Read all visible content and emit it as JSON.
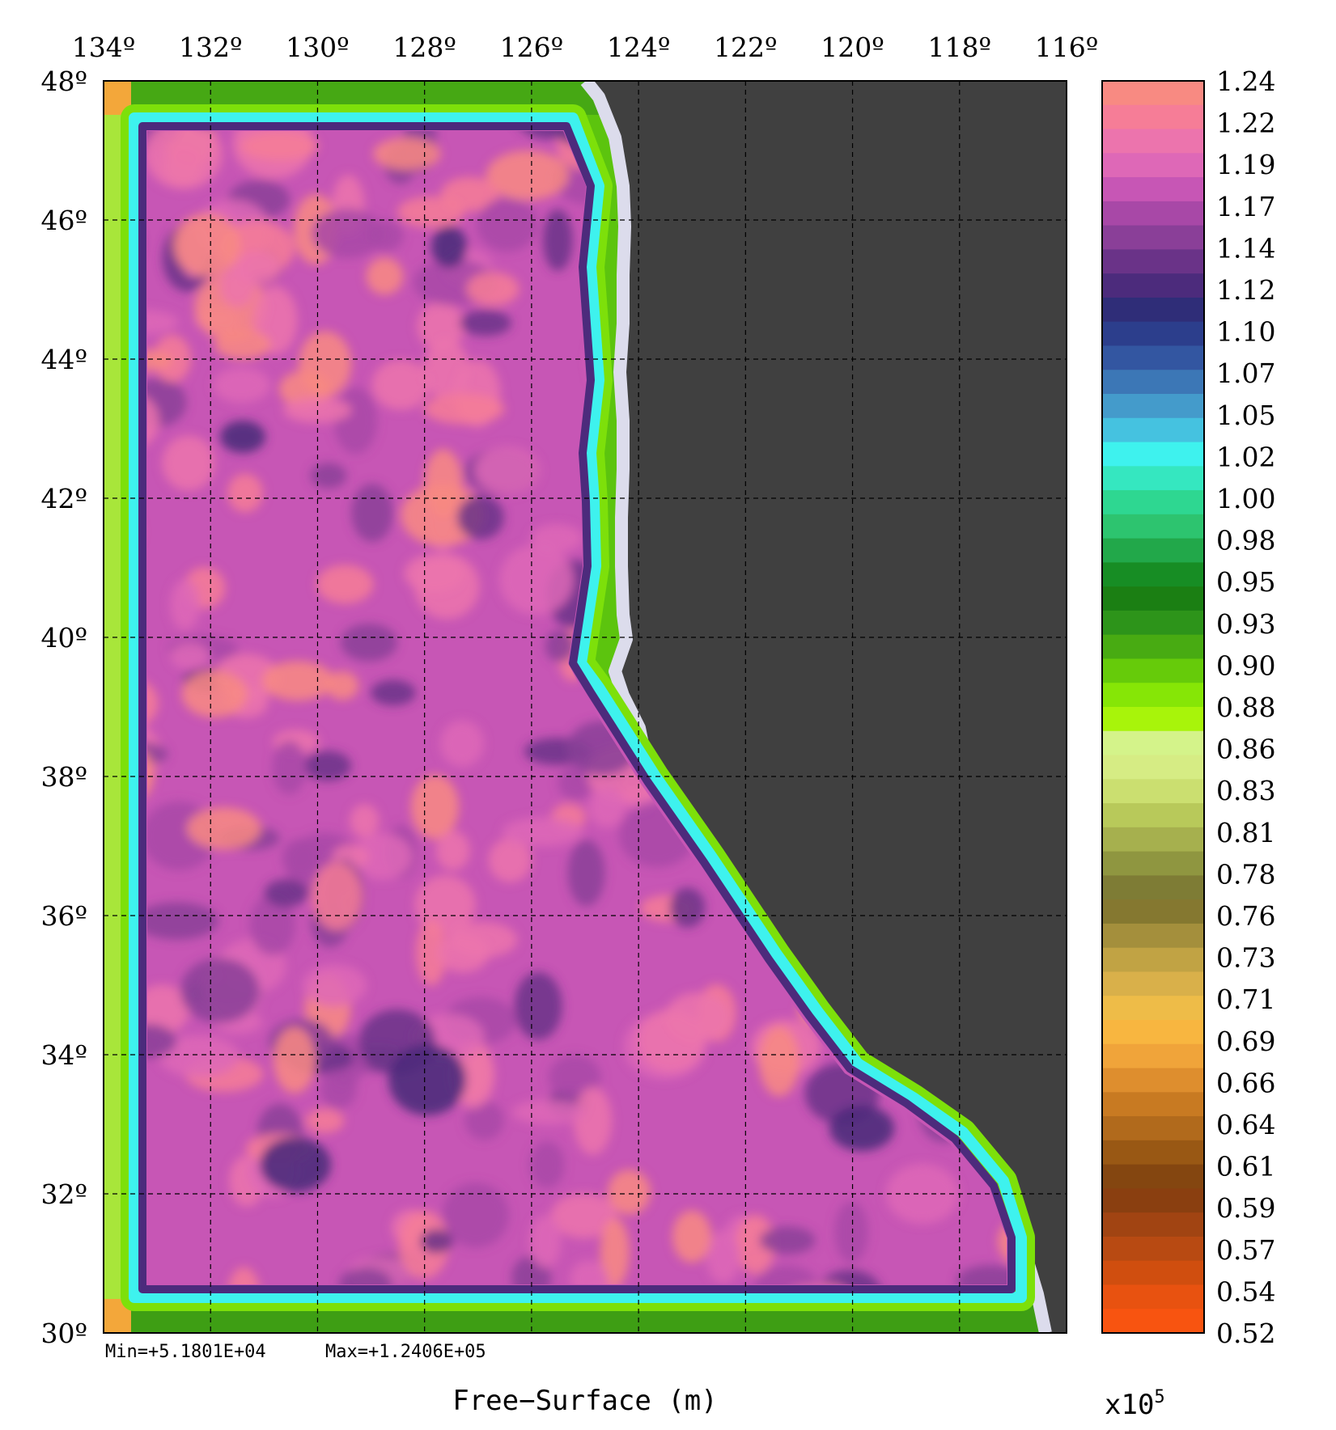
{
  "chart_data": {
    "type": "heatmap",
    "title": "Free−Surface (m)",
    "x_tick_labels": [
      "134º",
      "132º",
      "130º",
      "128º",
      "126º",
      "124º",
      "122º",
      "120º",
      "118º",
      "116º"
    ],
    "y_tick_labels": [
      "48º",
      "46º",
      "44º",
      "42º",
      "40º",
      "38º",
      "36º",
      "34º",
      "32º",
      "30º"
    ],
    "x_range": [
      134,
      116
    ],
    "y_range": [
      30,
      48
    ],
    "x_ticks": [
      134,
      132,
      130,
      128,
      126,
      124,
      122,
      120,
      118,
      116
    ],
    "y_ticks": [
      48,
      46,
      44,
      42,
      40,
      38,
      36,
      34,
      32,
      30
    ],
    "grid": true,
    "min_label": "Min=+5.1801E+04",
    "max_label": "Max=+1.2406E+05",
    "colorbar": {
      "range": [
        0.52,
        1.24
      ],
      "multiplier_label": "x10",
      "multiplier_exponent": "5",
      "tick_labels": [
        "1.24",
        "1.22",
        "1.19",
        "1.17",
        "1.14",
        "1.12",
        "1.10",
        "1.07",
        "1.05",
        "1.02",
        "1.00",
        "0.98",
        "0.95",
        "0.93",
        "0.90",
        "0.88",
        "0.86",
        "0.83",
        "0.81",
        "0.78",
        "0.76",
        "0.73",
        "0.71",
        "0.69",
        "0.66",
        "0.64",
        "0.61",
        "0.59",
        "0.57",
        "0.54",
        "0.52"
      ],
      "colors_top_to_bottom": [
        "#f88a82",
        "#f67d97",
        "#ec74ad",
        "#de68b7",
        "#c756b5",
        "#a848a7",
        "#8a3f98",
        "#6a3388",
        "#4c2b7c",
        "#2f2d78",
        "#2c3e8c",
        "#3356a1",
        "#3c77b6",
        "#449bcb",
        "#45c2e0",
        "#3ef2ee",
        "#35e7c0",
        "#2ed791",
        "#2dc46f",
        "#22a84a",
        "#178d24",
        "#1b7f13",
        "#2d941a",
        "#48ab12",
        "#66cb0a",
        "#86e606",
        "#a8f40a",
        "#d4f38a",
        "#d6ec84",
        "#cbdf70",
        "#b8c95a",
        "#a6b04e",
        "#8f9640",
        "#7e7c35",
        "#857830",
        "#a48f3c",
        "#c1a344",
        "#d9b04a",
        "#eebc48",
        "#f8b640",
        "#f0a43a",
        "#de8e2e",
        "#c87a22",
        "#b16a1c",
        "#995814",
        "#844610",
        "#8a3f10",
        "#a14412",
        "#b84a12",
        "#d04e0f",
        "#e85210",
        "#f85410"
      ]
    },
    "land_color": "#404040",
    "coast_color": "#dcdcec"
  }
}
